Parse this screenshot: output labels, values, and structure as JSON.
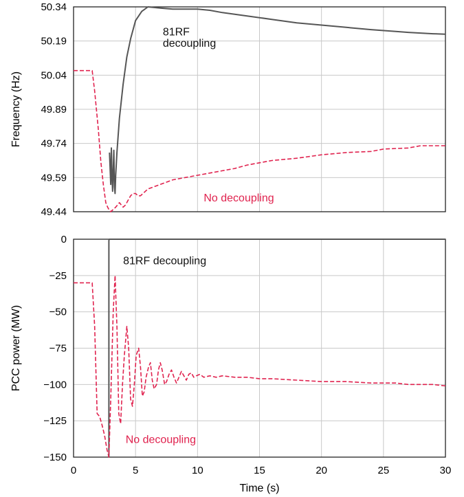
{
  "chart_data": [
    {
      "type": "line",
      "ylabel": "Frequency (Hz)",
      "xlim": [
        0,
        30
      ],
      "ylim": [
        49.44,
        50.34
      ],
      "xticks": [
        0,
        5,
        10,
        15,
        20,
        25,
        30
      ],
      "yticks": [
        "49.44",
        "49.59",
        "49.74",
        "49.89",
        "50.04",
        "50.19",
        "50.34"
      ],
      "grid": true,
      "series": [
        {
          "name": "81RF decoupling",
          "color": "#555555",
          "style": "solid",
          "x": [
            2.9,
            3.0,
            3.05,
            3.1,
            3.15,
            3.2,
            3.25,
            3.3,
            3.35,
            3.4,
            3.5,
            3.7,
            4.0,
            4.3,
            4.6,
            5.0,
            5.5,
            6.0,
            7.0,
            8.0,
            9.0,
            10.0,
            11.0,
            12.0,
            14.0,
            16.0,
            18.0,
            20.0,
            22.0,
            24.0,
            26.0,
            27.0,
            28.0,
            29.0,
            30.0
          ],
          "y": [
            49.7,
            49.56,
            49.72,
            49.6,
            49.53,
            49.62,
            49.71,
            49.55,
            49.52,
            49.6,
            49.7,
            49.85,
            50.0,
            50.12,
            50.2,
            50.28,
            50.32,
            50.34,
            50.335,
            50.33,
            50.33,
            50.33,
            50.325,
            50.315,
            50.3,
            50.285,
            50.27,
            50.26,
            50.25,
            50.24,
            50.232,
            50.228,
            50.225,
            50.222,
            50.22
          ]
        },
        {
          "name": "No decoupling",
          "color": "#e0224e",
          "style": "dashed",
          "x": [
            0.0,
            1.5,
            1.7,
            2.0,
            2.2,
            2.4,
            2.6,
            2.75,
            2.85,
            3.0,
            3.2,
            3.4,
            3.55,
            3.7,
            3.85,
            4.0,
            4.2,
            4.4,
            4.6,
            4.8,
            5.0,
            5.2,
            5.4,
            5.6,
            5.8,
            6.0,
            6.5,
            7.0,
            8.0,
            9.0,
            10.0,
            11.0,
            12.0,
            13.0,
            14.0,
            15.0,
            16.0,
            18.0,
            20.0,
            21.0,
            22.0,
            24.0,
            25.0,
            26.0,
            27.0,
            28.0,
            29.0,
            30.0
          ],
          "y": [
            50.06,
            50.06,
            49.97,
            49.8,
            49.66,
            49.56,
            49.48,
            49.46,
            49.45,
            49.44,
            49.45,
            49.46,
            49.47,
            49.48,
            49.47,
            49.46,
            49.47,
            49.49,
            49.51,
            49.52,
            49.52,
            49.51,
            49.51,
            49.52,
            49.53,
            49.54,
            49.55,
            49.56,
            49.58,
            49.59,
            49.6,
            49.61,
            49.62,
            49.63,
            49.645,
            49.655,
            49.665,
            49.675,
            49.69,
            49.695,
            49.7,
            49.705,
            49.715,
            49.718,
            49.72,
            49.73,
            49.73,
            49.73
          ]
        }
      ],
      "annotations": [
        {
          "text": "81RF",
          "x": 7.2,
          "y": 50.23,
          "series": "81RF decoupling"
        },
        {
          "text": "decoupling",
          "x": 7.2,
          "y": 50.18,
          "series": "81RF decoupling"
        },
        {
          "text": "No decoupling",
          "x": 10.5,
          "y": 49.5,
          "series": "No decoupling"
        }
      ]
    },
    {
      "type": "line",
      "xlabel": "Time (s)",
      "ylabel": "PCC power (MW)",
      "xlim": [
        0,
        30
      ],
      "ylim": [
        -150,
        0
      ],
      "xticks": [
        0,
        5,
        10,
        15,
        20,
        25,
        30
      ],
      "yticks": [
        "0",
        "−25",
        "−50",
        "−75",
        "−100",
        "−125",
        "−150"
      ],
      "grid": true,
      "series": [
        {
          "name": "81RF decoupling",
          "color": "#555555",
          "style": "solid",
          "x": [
            2.85,
            2.85,
            2.87,
            30.0
          ],
          "y": [
            -150,
            -1,
            0,
            0
          ]
        },
        {
          "name": "No decoupling",
          "color": "#e0224e",
          "style": "dashed",
          "x": [
            0.0,
            1.5,
            1.7,
            1.9,
            2.1,
            2.3,
            2.5,
            2.7,
            2.85,
            3.0,
            3.2,
            3.35,
            3.5,
            3.65,
            3.8,
            3.95,
            4.1,
            4.3,
            4.45,
            4.6,
            4.75,
            4.9,
            5.05,
            5.25,
            5.4,
            5.55,
            5.7,
            5.85,
            6.05,
            6.2,
            6.35,
            6.5,
            6.7,
            6.85,
            7.0,
            7.15,
            7.35,
            7.5,
            7.7,
            7.9,
            8.1,
            8.3,
            8.5,
            8.7,
            8.9,
            9.1,
            9.3,
            9.5,
            9.7,
            9.9,
            10.2,
            10.5,
            11.0,
            11.5,
            12.0,
            13.0,
            14.0,
            15.0,
            16.0,
            18.0,
            20.0,
            22.0,
            24.0,
            25.0,
            26.0,
            27.0,
            28.0,
            29.0,
            30.0
          ],
          "y": [
            -30,
            -30,
            -60,
            -120,
            -122,
            -128,
            -135,
            -145,
            -150,
            -110,
            -50,
            -25,
            -60,
            -120,
            -127,
            -100,
            -80,
            -60,
            -75,
            -110,
            -115,
            -100,
            -80,
            -75,
            -88,
            -108,
            -105,
            -95,
            -88,
            -85,
            -97,
            -103,
            -100,
            -90,
            -85,
            -90,
            -100,
            -98,
            -93,
            -90,
            -95,
            -99,
            -95,
            -91,
            -94,
            -97,
            -93,
            -92,
            -95,
            -94,
            -93,
            -95,
            -94,
            -95,
            -94,
            -95,
            -95,
            -96,
            -96,
            -97,
            -98,
            -98,
            -99,
            -99,
            -99,
            -100,
            -100,
            -100,
            -101
          ]
        }
      ],
      "annotations": [
        {
          "text": "81RF decoupling",
          "x": 4.0,
          "y": -15,
          "series": "81RF decoupling"
        },
        {
          "text": "No decoupling",
          "x": 4.2,
          "y": -138,
          "series": "No decoupling"
        }
      ]
    }
  ]
}
